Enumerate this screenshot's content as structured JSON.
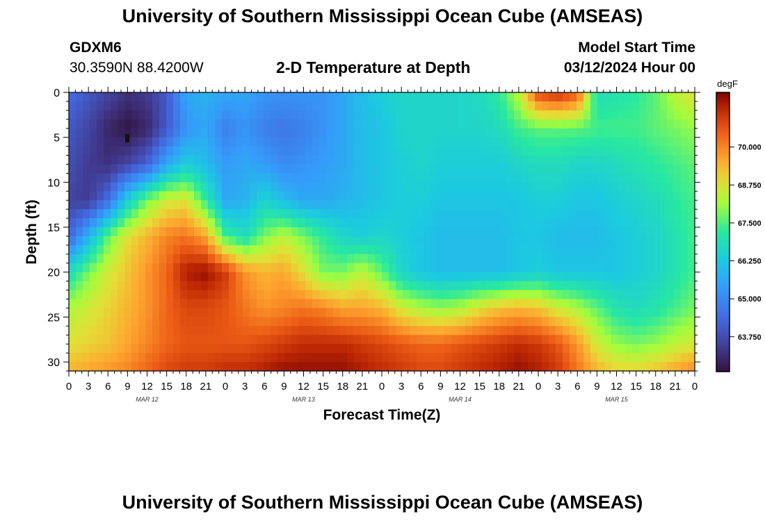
{
  "header": {
    "title": "University of Southern Mississippi Ocean Cube (AMSEAS)",
    "station": "GDXM6",
    "coords": "30.3590N  88.4200W",
    "subtitle": "2-D Temperature at Depth",
    "model_label": "Model Start Time",
    "model_date": "03/12/2024 Hour 00",
    "footer_title": "University of Southern Mississippi Ocean Cube (AMSEAS)"
  },
  "chart_data": {
    "type": "heatmap",
    "title": "2-D Temperature at Depth",
    "xlabel": "Forecast Time(Z)",
    "ylabel": "Depth (ft)",
    "x_tick_labels": [
      "0",
      "3",
      "6",
      "9",
      "12",
      "15",
      "18",
      "21",
      "0",
      "3",
      "6",
      "9",
      "12",
      "15",
      "18",
      "21",
      "0",
      "3",
      "6",
      "9",
      "12",
      "15",
      "18",
      "21",
      "0",
      "3",
      "6",
      "9",
      "12",
      "15",
      "18",
      "21",
      "0"
    ],
    "date_labels": [
      "MAR 12",
      "MAR 13",
      "MAR 14",
      "MAR 15"
    ],
    "date_label_hours": [
      12,
      36,
      60,
      84
    ],
    "xlim_hours": [
      0,
      96
    ],
    "y_ticks": [
      0,
      5,
      10,
      15,
      20,
      25,
      30
    ],
    "ylim_ft": [
      0,
      31
    ],
    "colorbar": {
      "unit": "degF",
      "tick_labels": [
        "70.000",
        "68.750",
        "67.500",
        "66.250",
        "65.000",
        "63.750"
      ],
      "tick_values": [
        70.0,
        68.75,
        67.5,
        66.25,
        65.0,
        63.75
      ],
      "range": [
        62.6,
        71.8
      ]
    },
    "grid_hours": [
      0,
      3,
      6,
      9,
      12,
      15,
      18,
      21,
      24,
      27,
      30,
      33,
      36,
      39,
      42,
      45,
      48,
      51,
      54,
      57,
      60,
      63,
      66,
      69,
      72,
      75,
      78,
      81,
      84,
      87,
      90,
      93,
      96
    ],
    "grid_depths_ft": [
      0,
      4,
      8,
      12,
      16,
      20,
      24,
      28,
      31
    ],
    "values_degF": [
      [
        64.4,
        64.0,
        63.6,
        63.2,
        63.4,
        64.0,
        65.6,
        65.8,
        65.6,
        65.6,
        65.2,
        65.2,
        65.2,
        65.2,
        65.6,
        66.0,
        66.4,
        66.6,
        66.6,
        66.6,
        66.6,
        66.8,
        67.2,
        68.4,
        70.8,
        71.2,
        70.6,
        66.8,
        67.0,
        67.2,
        67.6,
        68.4,
        68.8
      ],
      [
        64.0,
        63.6,
        63.0,
        62.7,
        63.0,
        64.0,
        65.2,
        65.6,
        64.8,
        65.2,
        64.8,
        64.6,
        64.8,
        65.2,
        65.6,
        66.0,
        66.2,
        66.6,
        66.6,
        66.6,
        66.6,
        66.6,
        66.8,
        67.4,
        67.6,
        67.6,
        67.6,
        67.4,
        67.4,
        67.4,
        67.6,
        67.8,
        68.0
      ],
      [
        63.8,
        63.4,
        63.2,
        63.6,
        64.2,
        65.6,
        66.4,
        66.0,
        65.4,
        65.6,
        65.4,
        65.0,
        65.2,
        65.4,
        65.6,
        66.0,
        66.2,
        66.4,
        66.6,
        66.4,
        66.4,
        66.4,
        66.4,
        66.6,
        66.8,
        66.8,
        66.6,
        66.6,
        66.8,
        67.0,
        67.2,
        67.4,
        67.6
      ],
      [
        63.6,
        63.4,
        64.4,
        66.4,
        67.8,
        68.6,
        68.8,
        67.2,
        65.6,
        65.8,
        66.6,
        66.0,
        65.6,
        65.6,
        65.8,
        66.0,
        66.2,
        66.4,
        66.4,
        66.2,
        66.2,
        66.2,
        66.2,
        66.2,
        66.4,
        66.4,
        66.2,
        66.2,
        66.4,
        66.6,
        66.8,
        67.2,
        67.4
      ],
      [
        64.2,
        65.8,
        67.6,
        68.8,
        69.4,
        70.0,
        70.2,
        69.6,
        67.4,
        66.8,
        67.8,
        68.4,
        67.8,
        67.2,
        66.6,
        66.4,
        66.6,
        66.4,
        66.2,
        66.0,
        66.0,
        66.0,
        66.0,
        66.2,
        66.2,
        66.0,
        66.0,
        66.0,
        66.2,
        66.4,
        66.6,
        67.0,
        67.4
      ],
      [
        66.8,
        67.8,
        68.6,
        69.2,
        69.8,
        70.4,
        71.4,
        71.6,
        71.0,
        69.8,
        69.4,
        69.6,
        68.8,
        67.8,
        67.8,
        68.4,
        67.6,
        66.6,
        66.2,
        66.0,
        66.0,
        66.0,
        66.0,
        66.2,
        66.4,
        66.2,
        66.2,
        66.2,
        66.2,
        66.4,
        66.6,
        67.0,
        67.4
      ],
      [
        68.2,
        68.6,
        69.0,
        69.4,
        69.8,
        70.4,
        70.8,
        70.8,
        70.6,
        70.2,
        69.8,
        70.0,
        70.2,
        70.0,
        69.6,
        69.6,
        69.4,
        68.6,
        68.2,
        68.0,
        68.2,
        68.8,
        69.2,
        69.4,
        69.2,
        68.6,
        68.2,
        67.6,
        67.0,
        66.8,
        67.0,
        67.4,
        67.8
      ],
      [
        68.8,
        69.0,
        69.2,
        69.6,
        70.0,
        70.4,
        70.6,
        70.6,
        70.6,
        70.6,
        70.8,
        71.0,
        71.2,
        71.2,
        71.2,
        71.0,
        70.8,
        70.6,
        70.4,
        70.4,
        70.6,
        70.8,
        71.0,
        71.2,
        71.0,
        70.6,
        69.8,
        68.6,
        68.0,
        67.8,
        68.0,
        68.4,
        68.6
      ],
      [
        69.4,
        69.6,
        69.8,
        70.0,
        70.4,
        70.8,
        71.0,
        71.0,
        71.2,
        71.2,
        71.4,
        71.6,
        71.6,
        71.6,
        71.6,
        71.4,
        71.2,
        71.0,
        70.8,
        70.8,
        71.0,
        71.2,
        71.4,
        71.6,
        71.4,
        71.0,
        70.2,
        69.4,
        69.0,
        69.0,
        69.2,
        69.6,
        70.0
      ]
    ]
  }
}
